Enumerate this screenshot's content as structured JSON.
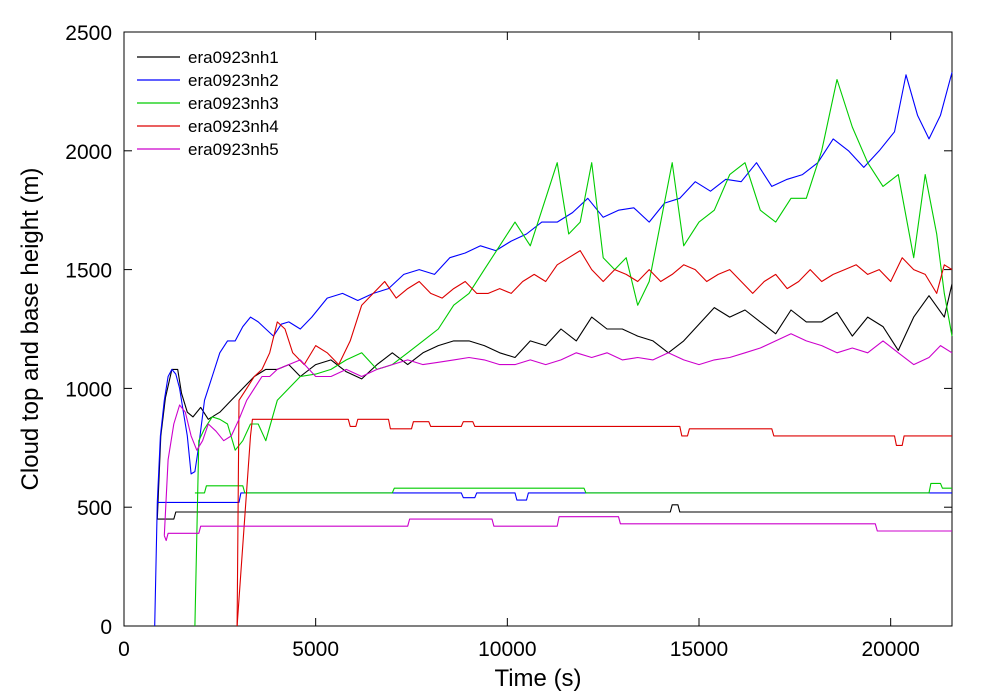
{
  "chart_data": {
    "type": "line",
    "title": "",
    "xlabel": "Time (s)",
    "ylabel": "Cloud top and base height (m)",
    "xlim": [
      0,
      21600
    ],
    "ylim": [
      0,
      2500
    ],
    "xticks": [
      0,
      5000,
      10000,
      15000,
      20000
    ],
    "yticks": [
      0,
      500,
      1000,
      1500,
      2000,
      2500
    ],
    "grid": false,
    "legend_position": "top-left",
    "series": [
      {
        "name": "era0923nh1",
        "color": "#000000",
        "top": {
          "x": [
            870,
            960,
            1080,
            1250,
            1400,
            1500,
            1650,
            1800,
            2000,
            2200,
            2500,
            2800,
            3100,
            3400,
            3700,
            4000,
            4300,
            4600,
            5000,
            5400,
            5800,
            6200,
            6600,
            7000,
            7400,
            7800,
            8200,
            8600,
            9000,
            9400,
            9800,
            10200,
            10600,
            11000,
            11400,
            11800,
            12200,
            12600,
            13000,
            13400,
            13800,
            14200,
            14600,
            15000,
            15400,
            15800,
            16200,
            16600,
            17000,
            17400,
            17800,
            18200,
            18600,
            19000,
            19400,
            19800,
            20200,
            20600,
            21000,
            21400,
            21600
          ],
          "y": [
            450,
            800,
            960,
            1080,
            1080,
            980,
            900,
            880,
            920,
            870,
            900,
            950,
            1000,
            1050,
            1080,
            1080,
            1100,
            1050,
            1100,
            1120,
            1070,
            1040,
            1100,
            1150,
            1100,
            1150,
            1180,
            1200,
            1200,
            1180,
            1150,
            1130,
            1200,
            1180,
            1250,
            1200,
            1300,
            1250,
            1250,
            1220,
            1200,
            1150,
            1200,
            1270,
            1340,
            1300,
            1330,
            1280,
            1230,
            1330,
            1280,
            1280,
            1320,
            1220,
            1300,
            1260,
            1160,
            1300,
            1390,
            1300,
            1440
          ]
        },
        "base": {
          "x": [
            870,
            1300,
            1350,
            14250,
            14300,
            14450,
            14500,
            21600
          ],
          "y": [
            450,
            450,
            480,
            480,
            510,
            510,
            480,
            480
          ]
        }
      },
      {
        "name": "era0923nh2",
        "color": "#0000ff",
        "top": {
          "x": [
            800,
            870,
            950,
            1050,
            1150,
            1250,
            1350,
            1450,
            1550,
            1650,
            1750,
            1850,
            1950,
            2100,
            2300,
            2500,
            2700,
            2900,
            3100,
            3300,
            3500,
            3700,
            3900,
            4100,
            4300,
            4600,
            4900,
            5300,
            5700,
            6100,
            6500,
            6900,
            7300,
            7700,
            8100,
            8500,
            8900,
            9300,
            9700,
            10100,
            10500,
            10900,
            11300,
            11700,
            12100,
            12500,
            12900,
            13300,
            13700,
            14100,
            14500,
            14900,
            15300,
            15700,
            16100,
            16500,
            16900,
            17300,
            17700,
            18100,
            18500,
            18900,
            19300,
            19700,
            20100,
            20400,
            20700,
            21000,
            21300,
            21600
          ],
          "y": [
            0,
            520,
            800,
            950,
            1050,
            1080,
            1060,
            1000,
            900,
            800,
            640,
            650,
            760,
            950,
            1050,
            1150,
            1200,
            1200,
            1260,
            1300,
            1280,
            1250,
            1220,
            1270,
            1280,
            1250,
            1300,
            1380,
            1400,
            1370,
            1400,
            1420,
            1480,
            1500,
            1480,
            1550,
            1570,
            1600,
            1580,
            1620,
            1650,
            1700,
            1700,
            1740,
            1800,
            1720,
            1750,
            1760,
            1700,
            1780,
            1800,
            1870,
            1830,
            1880,
            1870,
            1950,
            1850,
            1880,
            1900,
            1950,
            2050,
            2000,
            1930,
            2000,
            2080,
            2320,
            2150,
            2050,
            2150,
            2330
          ]
        },
        "base": {
          "x": [
            870,
            3000,
            3050,
            8800,
            8850,
            9150,
            9200,
            10200,
            10250,
            10500,
            10550,
            21600
          ],
          "y": [
            520,
            520,
            560,
            560,
            540,
            540,
            560,
            560,
            530,
            530,
            560,
            560
          ]
        }
      },
      {
        "name": "era0923nh3",
        "color": "#00cc00",
        "top": {
          "x": [
            1850,
            1950,
            2100,
            2300,
            2500,
            2700,
            2900,
            3100,
            3300,
            3500,
            3700,
            4000,
            4300,
            4600,
            5000,
            5400,
            5800,
            6200,
            6600,
            7000,
            7400,
            7800,
            8200,
            8600,
            9000,
            9400,
            9800,
            10200,
            10600,
            11000,
            11300,
            11600,
            11900,
            12200,
            12500,
            12800,
            13100,
            13400,
            13700,
            14000,
            14300,
            14600,
            15000,
            15400,
            15800,
            16200,
            16600,
            17000,
            17400,
            17800,
            18200,
            18600,
            19000,
            19400,
            19800,
            20200,
            20600,
            20900,
            21200,
            21400,
            21600
          ],
          "y": [
            0,
            780,
            830,
            880,
            870,
            850,
            740,
            780,
            850,
            850,
            780,
            950,
            1000,
            1050,
            1060,
            1080,
            1120,
            1150,
            1080,
            1100,
            1150,
            1200,
            1250,
            1350,
            1400,
            1500,
            1600,
            1700,
            1600,
            1800,
            1950,
            1650,
            1700,
            1950,
            1550,
            1500,
            1550,
            1350,
            1450,
            1700,
            1950,
            1600,
            1700,
            1750,
            1900,
            1950,
            1750,
            1700,
            1800,
            1800,
            2000,
            2300,
            2100,
            1950,
            1850,
            1900,
            1550,
            1900,
            1650,
            1400,
            1220
          ]
        },
        "base": {
          "x": [
            1850,
            2100,
            2150,
            3100,
            3150,
            7000,
            7050,
            12000,
            12050,
            21000,
            21050,
            21300,
            21350,
            21600
          ],
          "y": [
            560,
            560,
            590,
            590,
            560,
            560,
            580,
            580,
            560,
            560,
            600,
            600,
            580,
            580
          ]
        }
      },
      {
        "name": "era0923nh4",
        "color": "#dd0000",
        "top": {
          "x": [
            2950,
            3000,
            3200,
            3400,
            3600,
            3800,
            4000,
            4200,
            4400,
            4700,
            5000,
            5300,
            5600,
            5900,
            6200,
            6500,
            6800,
            7100,
            7400,
            7700,
            8000,
            8300,
            8600,
            8900,
            9200,
            9500,
            9800,
            10100,
            10400,
            10700,
            11000,
            11300,
            11600,
            11900,
            12200,
            12500,
            12800,
            13100,
            13400,
            13700,
            14000,
            14300,
            14600,
            14900,
            15200,
            15500,
            15800,
            16100,
            16400,
            16700,
            17000,
            17300,
            17600,
            17900,
            18200,
            18500,
            18800,
            19100,
            19400,
            19700,
            20000,
            20300,
            20600,
            20900,
            21200,
            21400,
            21600
          ],
          "y": [
            0,
            950,
            1000,
            1050,
            1080,
            1150,
            1280,
            1250,
            1150,
            1100,
            1180,
            1150,
            1100,
            1200,
            1350,
            1400,
            1450,
            1380,
            1420,
            1450,
            1400,
            1380,
            1420,
            1450,
            1400,
            1400,
            1420,
            1400,
            1450,
            1480,
            1450,
            1520,
            1550,
            1580,
            1500,
            1450,
            1500,
            1480,
            1450,
            1500,
            1450,
            1480,
            1520,
            1500,
            1450,
            1480,
            1500,
            1450,
            1400,
            1450,
            1480,
            1420,
            1450,
            1500,
            1450,
            1480,
            1500,
            1520,
            1480,
            1500,
            1450,
            1550,
            1500,
            1480,
            1400,
            1520,
            1500
          ]
        },
        "base": {
          "x": [
            2950,
            3300,
            3350,
            5850,
            5900,
            6050,
            6100,
            6900,
            6950,
            7500,
            7550,
            7950,
            8000,
            8800,
            8850,
            9100,
            9150,
            14500,
            14550,
            14700,
            14750,
            16900,
            16950,
            20100,
            20150,
            20300,
            20350,
            21600
          ],
          "y": [
            0,
            800,
            870,
            870,
            840,
            840,
            870,
            870,
            830,
            830,
            860,
            860,
            840,
            840,
            860,
            860,
            840,
            840,
            800,
            800,
            830,
            830,
            800,
            800,
            760,
            760,
            800,
            800
          ]
        }
      },
      {
        "name": "era0923nh5",
        "color": "#cc00cc",
        "top": {
          "x": [
            1050,
            1150,
            1300,
            1450,
            1600,
            1750,
            1900,
            2050,
            2200,
            2400,
            2600,
            2800,
            3000,
            3200,
            3400,
            3600,
            3800,
            4000,
            4300,
            4600,
            5000,
            5400,
            5800,
            6200,
            6600,
            7000,
            7400,
            7800,
            8200,
            8600,
            9000,
            9400,
            9800,
            10200,
            10600,
            11000,
            11400,
            11800,
            12200,
            12600,
            13000,
            13400,
            13800,
            14200,
            14600,
            15000,
            15400,
            15800,
            16200,
            16600,
            17000,
            17400,
            17800,
            18200,
            18600,
            19000,
            19400,
            19800,
            20200,
            20600,
            21000,
            21300,
            21600
          ],
          "y": [
            380,
            700,
            850,
            930,
            900,
            800,
            740,
            780,
            850,
            820,
            780,
            800,
            870,
            950,
            1000,
            1050,
            1050,
            1080,
            1100,
            1120,
            1050,
            1050,
            1080,
            1050,
            1080,
            1100,
            1120,
            1100,
            1110,
            1120,
            1130,
            1120,
            1100,
            1100,
            1120,
            1100,
            1120,
            1150,
            1130,
            1150,
            1120,
            1130,
            1120,
            1150,
            1120,
            1100,
            1120,
            1130,
            1150,
            1170,
            1200,
            1230,
            1200,
            1180,
            1150,
            1170,
            1150,
            1200,
            1150,
            1100,
            1130,
            1180,
            1150
          ]
        },
        "base": {
          "x": [
            1050,
            1100,
            1150,
            1950,
            2000,
            7400,
            7450,
            9600,
            9650,
            11300,
            11350,
            12900,
            12950,
            19600,
            19650,
            21600
          ],
          "y": [
            380,
            360,
            390,
            390,
            420,
            420,
            450,
            450,
            420,
            420,
            460,
            460,
            430,
            430,
            400,
            400
          ]
        }
      }
    ]
  }
}
